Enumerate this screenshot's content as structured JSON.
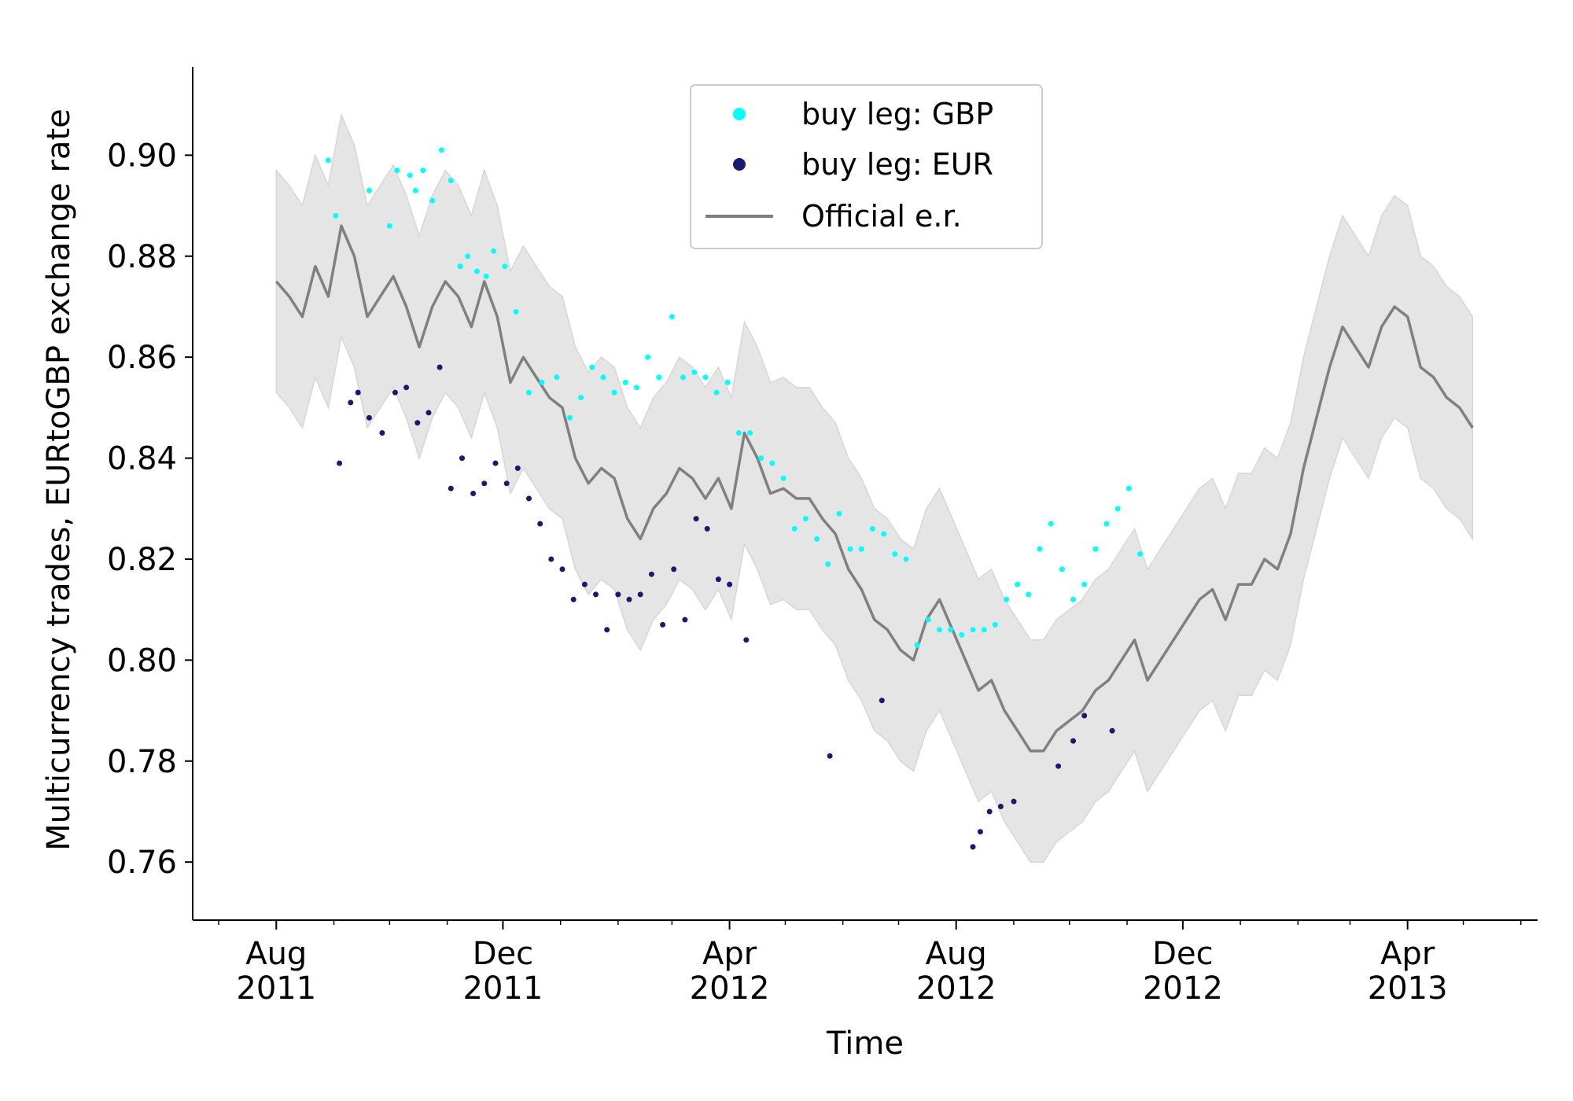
{
  "chart_data": {
    "type": "line",
    "title": "",
    "xlabel": "Time",
    "ylabel": "Multicurrency trades, EURtoGBP exchange rate",
    "xlim": [
      "2011-06-17",
      "2013-06-10"
    ],
    "ylim": [
      0.7485,
      0.9175
    ],
    "grid": false,
    "legend_position": "top-center",
    "x_ticks": [
      {
        "date": "2011-08-01",
        "label": [
          "Aug",
          "2011"
        ]
      },
      {
        "date": "2011-12-01",
        "label": [
          "Dec",
          "2011"
        ]
      },
      {
        "date": "2012-04-01",
        "label": [
          "Apr",
          "2012"
        ]
      },
      {
        "date": "2012-08-01",
        "label": [
          "Aug",
          "2012"
        ]
      },
      {
        "date": "2012-12-01",
        "label": [
          "Dec",
          "2012"
        ]
      },
      {
        "date": "2013-04-01",
        "label": [
          "Apr",
          "2013"
        ]
      }
    ],
    "minor_x_ticks": [
      "2011-07-01",
      "2011-09-01",
      "2011-10-01",
      "2011-11-01",
      "2012-01-01",
      "2012-02-01",
      "2012-03-01",
      "2012-05-01",
      "2012-06-01",
      "2012-07-01",
      "2012-09-01",
      "2012-10-01",
      "2012-11-01",
      "2013-01-01",
      "2013-02-01",
      "2013-03-01",
      "2013-05-01",
      "2013-06-01"
    ],
    "y_ticks": [
      0.76,
      0.78,
      0.8,
      0.82,
      0.84,
      0.86,
      0.88,
      0.9
    ],
    "y_tick_labels": [
      "0.76",
      "0.78",
      "0.80",
      "0.82",
      "0.84",
      "0.86",
      "0.88",
      "0.90"
    ],
    "series": [
      {
        "name": "Official e.r.",
        "kind": "line",
        "color": "#808080",
        "band_halfwidth": 0.022,
        "band_color": "#e5e5e5",
        "x": [
          "2011-08-01",
          "2011-08-08",
          "2011-08-15",
          "2011-08-22",
          "2011-08-29",
          "2011-09-05",
          "2011-09-12",
          "2011-09-19",
          "2011-09-26",
          "2011-10-03",
          "2011-10-10",
          "2011-10-17",
          "2011-10-24",
          "2011-10-31",
          "2011-11-07",
          "2011-11-14",
          "2011-11-21",
          "2011-11-28",
          "2011-12-05",
          "2011-12-12",
          "2011-12-19",
          "2011-12-26",
          "2012-01-02",
          "2012-01-09",
          "2012-01-16",
          "2012-01-23",
          "2012-01-30",
          "2012-02-06",
          "2012-02-13",
          "2012-02-20",
          "2012-02-27",
          "2012-03-05",
          "2012-03-12",
          "2012-03-19",
          "2012-03-26",
          "2012-04-02",
          "2012-04-09",
          "2012-04-16",
          "2012-04-23",
          "2012-04-30",
          "2012-05-07",
          "2012-05-14",
          "2012-05-21",
          "2012-05-28",
          "2012-06-04",
          "2012-06-11",
          "2012-06-18",
          "2012-06-25",
          "2012-07-02",
          "2012-07-09",
          "2012-07-16",
          "2012-07-23",
          "2012-07-30",
          "2012-08-06",
          "2012-08-13",
          "2012-08-20",
          "2012-08-27",
          "2012-09-03",
          "2012-09-10",
          "2012-09-17",
          "2012-09-24",
          "2012-10-01",
          "2012-10-08",
          "2012-10-15",
          "2012-10-22",
          "2012-10-29",
          "2012-11-05",
          "2012-11-12",
          "2012-11-19",
          "2012-11-26",
          "2012-12-03",
          "2012-12-10",
          "2012-12-17",
          "2012-12-24",
          "2012-12-31",
          "2013-01-07",
          "2013-01-14",
          "2013-01-21",
          "2013-01-28",
          "2013-02-04",
          "2013-02-11",
          "2013-02-18",
          "2013-02-25",
          "2013-03-04",
          "2013-03-11",
          "2013-03-18",
          "2013-03-25",
          "2013-04-01",
          "2013-04-08",
          "2013-04-15",
          "2013-04-22",
          "2013-04-29",
          "2013-05-06"
        ],
        "values": [
          0.875,
          0.872,
          0.868,
          0.878,
          0.872,
          0.886,
          0.88,
          0.868,
          0.872,
          0.876,
          0.87,
          0.862,
          0.87,
          0.875,
          0.872,
          0.866,
          0.875,
          0.868,
          0.855,
          0.86,
          0.856,
          0.852,
          0.85,
          0.84,
          0.835,
          0.838,
          0.836,
          0.828,
          0.824,
          0.83,
          0.833,
          0.838,
          0.836,
          0.832,
          0.836,
          0.83,
          0.845,
          0.84,
          0.833,
          0.834,
          0.832,
          0.832,
          0.828,
          0.825,
          0.818,
          0.814,
          0.808,
          0.806,
          0.802,
          0.8,
          0.808,
          0.812,
          0.806,
          0.8,
          0.794,
          0.796,
          0.79,
          0.786,
          0.782,
          0.782,
          0.786,
          0.788,
          0.79,
          0.794,
          0.796,
          0.8,
          0.804,
          0.796,
          0.8,
          0.804,
          0.808,
          0.812,
          0.814,
          0.808,
          0.815,
          0.815,
          0.82,
          0.818,
          0.825,
          0.838,
          0.848,
          0.858,
          0.866,
          0.862,
          0.858,
          0.866,
          0.87,
          0.868,
          0.858,
          0.856,
          0.852,
          0.85,
          0.846
        ]
      },
      {
        "name": "buy leg: GBP",
        "kind": "scatter",
        "color": "#00ffff",
        "x": [
          "2011-08-29",
          "2011-09-02",
          "2011-09-20",
          "2011-10-01",
          "2011-10-05",
          "2011-10-12",
          "2011-10-15",
          "2011-10-19",
          "2011-10-24",
          "2011-10-29",
          "2011-11-03",
          "2011-11-08",
          "2011-11-12",
          "2011-11-17",
          "2011-11-22",
          "2011-11-26",
          "2011-12-02",
          "2011-12-08",
          "2011-12-15",
          "2011-12-22",
          "2011-12-30",
          "2012-01-06",
          "2012-01-12",
          "2012-01-18",
          "2012-01-24",
          "2012-01-30",
          "2012-02-05",
          "2012-02-11",
          "2012-02-17",
          "2012-02-23",
          "2012-03-01",
          "2012-03-07",
          "2012-03-13",
          "2012-03-19",
          "2012-03-25",
          "2012-03-31",
          "2012-04-06",
          "2012-04-12",
          "2012-04-18",
          "2012-04-24",
          "2012-04-30",
          "2012-05-06",
          "2012-05-12",
          "2012-05-18",
          "2012-05-24",
          "2012-05-30",
          "2012-06-05",
          "2012-06-11",
          "2012-06-17",
          "2012-06-23",
          "2012-06-29",
          "2012-07-05",
          "2012-07-11",
          "2012-07-17",
          "2012-07-23",
          "2012-07-29",
          "2012-08-04",
          "2012-08-10",
          "2012-08-16",
          "2012-08-22",
          "2012-08-28",
          "2012-09-03",
          "2012-09-09",
          "2012-09-15",
          "2012-09-21",
          "2012-09-27",
          "2012-10-03",
          "2012-10-09",
          "2012-10-15",
          "2012-10-21",
          "2012-10-27",
          "2012-11-02",
          "2012-11-08"
        ],
        "values": [
          0.899,
          0.888,
          0.893,
          0.886,
          0.897,
          0.896,
          0.893,
          0.897,
          0.891,
          0.901,
          0.895,
          0.878,
          0.88,
          0.877,
          0.876,
          0.881,
          0.878,
          0.869,
          0.853,
          0.855,
          0.856,
          0.848,
          0.852,
          0.858,
          0.856,
          0.853,
          0.855,
          0.854,
          0.86,
          0.856,
          0.868,
          0.856,
          0.857,
          0.856,
          0.853,
          0.855,
          0.845,
          0.845,
          0.84,
          0.839,
          0.836,
          0.826,
          0.828,
          0.824,
          0.819,
          0.829,
          0.822,
          0.822,
          0.826,
          0.825,
          0.821,
          0.82,
          0.803,
          0.808,
          0.806,
          0.806,
          0.805,
          0.806,
          0.806,
          0.807,
          0.812,
          0.815,
          0.813,
          0.822,
          0.827,
          0.818,
          0.812,
          0.815,
          0.822,
          0.827,
          0.83,
          0.834,
          0.821
        ]
      },
      {
        "name": "buy leg: EUR",
        "kind": "scatter",
        "color": "#191970",
        "x": [
          "2011-09-04",
          "2011-09-10",
          "2011-09-14",
          "2011-09-20",
          "2011-09-27",
          "2011-10-04",
          "2011-10-10",
          "2011-10-16",
          "2011-10-22",
          "2011-10-28",
          "2011-11-03",
          "2011-11-09",
          "2011-11-15",
          "2011-11-21",
          "2011-11-27",
          "2011-12-03",
          "2011-12-09",
          "2011-12-15",
          "2011-12-21",
          "2011-12-27",
          "2012-01-02",
          "2012-01-08",
          "2012-01-14",
          "2012-01-20",
          "2012-01-26",
          "2012-02-01",
          "2012-02-07",
          "2012-02-13",
          "2012-02-19",
          "2012-02-25",
          "2012-03-02",
          "2012-03-08",
          "2012-03-14",
          "2012-03-20",
          "2012-03-26",
          "2012-04-01",
          "2012-04-10",
          "2012-05-25",
          "2012-06-22",
          "2012-08-10",
          "2012-08-14",
          "2012-08-19",
          "2012-08-25",
          "2012-09-01",
          "2012-09-25",
          "2012-10-03",
          "2012-10-09",
          "2012-10-24"
        ],
        "values": [
          0.839,
          0.851,
          0.853,
          0.848,
          0.845,
          0.853,
          0.854,
          0.847,
          0.849,
          0.858,
          0.834,
          0.84,
          0.833,
          0.835,
          0.839,
          0.835,
          0.838,
          0.832,
          0.827,
          0.82,
          0.818,
          0.812,
          0.815,
          0.813,
          0.806,
          0.813,
          0.812,
          0.813,
          0.817,
          0.807,
          0.818,
          0.808,
          0.828,
          0.826,
          0.816,
          0.815,
          0.804,
          0.781,
          0.792,
          0.763,
          0.766,
          0.77,
          0.771,
          0.772,
          0.779,
          0.784,
          0.789,
          0.786
        ]
      }
    ]
  }
}
